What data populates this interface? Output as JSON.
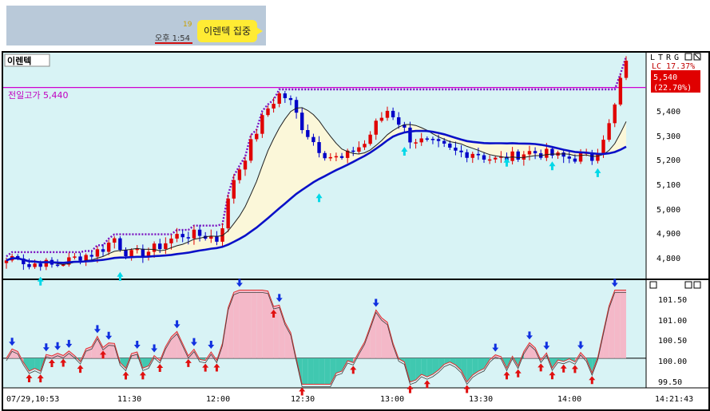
{
  "chat": {
    "unread_count": "19",
    "time": "오후 1:54",
    "message": "이렌텍 집중"
  },
  "colors": {
    "background": "#d8f3f5",
    "up_candle": "#e00000",
    "down_candle": "#0000c8",
    "long_ma": "#0a10c8",
    "short_ma": "#202020",
    "prev_high_line": "#d000d0",
    "dotted_high": "#7a10c0",
    "osc_pos_fill": "#f4b8c8",
    "osc_neg_fill": "#40c8b0"
  },
  "chart": {
    "stock_name": "이렌텍",
    "corner_buttons": [
      "L",
      "T",
      "R",
      "G"
    ],
    "prev_high_label": "전일고가 5,440",
    "lc_label": "LC 17.37%",
    "price_tag": "5,540",
    "change_tag": "(22.70%)",
    "y_ticks": [
      "5,400",
      "5,300",
      "5,200",
      "5,100",
      "5,000",
      "4,900",
      "4,800"
    ],
    "x_ticks": [
      "07/29,10:53",
      "11:30",
      "12:00",
      "12:30",
      "13:00",
      "13:30",
      "14:00"
    ],
    "osc_ticks": [
      "101.50",
      "101.00",
      "100.50",
      "100.00",
      "99.50"
    ],
    "clock": "14:21:43"
  },
  "chart_data": {
    "type": "candlestick",
    "price_range": [
      4730,
      5570
    ],
    "prev_high": 5440,
    "last_price": 5540,
    "change_pct": 22.7,
    "osc_range": [
      99.3,
      101.85
    ],
    "osc_baseline": 100.0
  }
}
